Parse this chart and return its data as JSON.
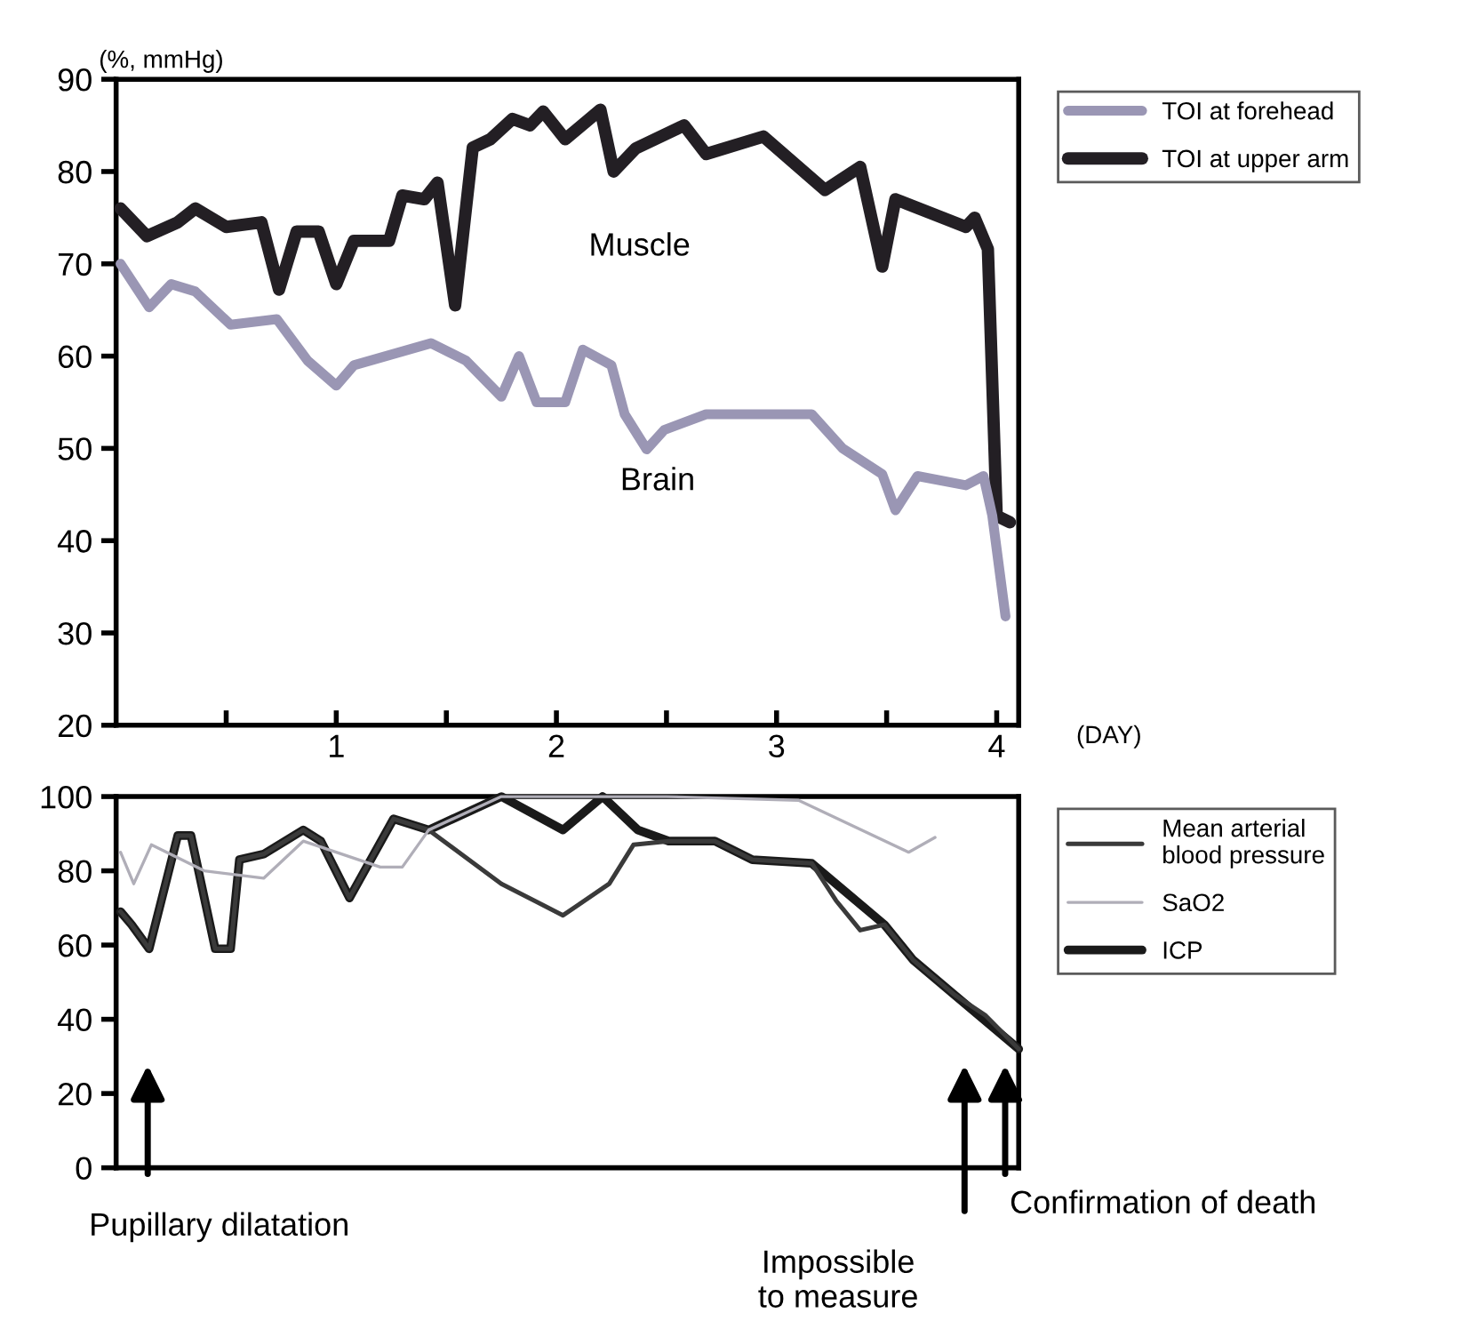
{
  "chart_data": [
    {
      "type": "line",
      "ylabel": "(%, mmHg)",
      "xlabel": "(DAY)",
      "xlim": [
        0,
        4.1
      ],
      "ylim": [
        20,
        90
      ],
      "xticks": [
        {
          "value": 0.5,
          "label": null
        },
        1,
        {
          "value": 1.5,
          "label": null
        },
        2,
        {
          "value": 2.5,
          "label": null
        },
        3,
        {
          "value": 3.5,
          "label": null
        },
        4
      ],
      "yticks": [
        20,
        30,
        40,
        50,
        60,
        70,
        80,
        90
      ],
      "legend": "right",
      "grid": false,
      "annotations": [
        "Muscle",
        "Brain"
      ],
      "series": [
        {
          "name": "TOI at forehead",
          "color": "#9a96b4",
          "x": [
            0.02,
            0.15,
            0.25,
            0.36,
            0.52,
            0.73,
            0.87,
            1.0,
            1.08,
            1.43,
            1.59,
            1.75,
            1.83,
            1.91,
            2.04,
            2.12,
            2.25,
            2.31,
            2.41,
            2.49,
            2.68,
            3.16,
            3.3,
            3.48,
            3.54,
            3.64,
            3.86,
            3.94,
            3.98,
            4.04
          ],
          "values": [
            70,
            65.3,
            67.8,
            67,
            63.4,
            64,
            59.5,
            56.8,
            59,
            61.4,
            59.5,
            55.6,
            60,
            55,
            55,
            60.7,
            59,
            53.7,
            49.9,
            52,
            53.7,
            53.7,
            50,
            47.2,
            43.3,
            47,
            46,
            47,
            42.7,
            31.8
          ]
        },
        {
          "name": "TOI at upper arm",
          "color": "#231f24",
          "x": [
            0.02,
            0.14,
            0.28,
            0.36,
            0.5,
            0.66,
            0.74,
            0.82,
            0.92,
            1.0,
            1.08,
            1.24,
            1.3,
            1.4,
            1.46,
            1.54,
            1.62,
            1.7,
            1.8,
            1.88,
            1.94,
            2.04,
            2.14,
            2.2,
            2.26,
            2.36,
            2.58,
            2.68,
            2.94,
            3.22,
            3.38,
            3.48,
            3.54,
            3.86,
            3.9,
            3.96,
            4.0,
            4.06
          ],
          "values": [
            76,
            73,
            74.5,
            76,
            74,
            74.5,
            67.2,
            73.5,
            73.5,
            67.8,
            72.5,
            72.5,
            77.4,
            77,
            78.8,
            65.5,
            82.6,
            83.5,
            85.7,
            85,
            86.5,
            83.5,
            85.5,
            86.7,
            80,
            82.5,
            85,
            81.9,
            83.8,
            78,
            80.5,
            69.7,
            77,
            74,
            75,
            71.6,
            42.7,
            42
          ]
        }
      ]
    },
    {
      "type": "line",
      "xlim": [
        0,
        4.1
      ],
      "ylim": [
        0,
        100
      ],
      "yticks": [
        0,
        20,
        40,
        60,
        80,
        100
      ],
      "tick_labels": "y",
      "legend": "right",
      "grid": false,
      "annotations": [
        "Pupillary dilatation",
        "Impossible\nto measure",
        "Confirmation of death"
      ],
      "series": [
        {
          "name": "Mean arterial\nblood pressure",
          "color": "#3a3a3a",
          "x": [
            0.02,
            0.07,
            0.15,
            0.28,
            0.34,
            0.45,
            0.52,
            0.56,
            0.67,
            0.85,
            0.93,
            1.06,
            1.26,
            1.42,
            1.75,
            2.03,
            2.24,
            2.35,
            2.51,
            2.62,
            2.72,
            2.89,
            3.16,
            3.27,
            3.38,
            3.49,
            3.62,
            3.81,
            3.95,
            4.1
          ],
          "values": [
            69,
            65.5,
            59,
            89.5,
            89.5,
            59,
            59,
            83,
            84.5,
            91,
            88,
            72.7,
            94,
            91,
            76.5,
            68,
            76.5,
            87,
            88,
            88,
            88,
            83,
            82,
            72,
            64,
            65.5,
            56,
            46.5,
            41,
            32
          ]
        },
        {
          "name": "SaO2",
          "color": "#b0aeb8",
          "x": [
            0.02,
            0.08,
            0.16,
            0.4,
            0.67,
            0.85,
            1.2,
            1.3,
            1.42,
            1.75,
            2.5,
            3.1,
            3.6,
            3.72
          ],
          "values": [
            85,
            76.5,
            87,
            80,
            78,
            88,
            81,
            81,
            91,
            100,
            100,
            99,
            85,
            89
          ]
        },
        {
          "name": "ICP",
          "color": "#1a1a1a",
          "x": [
            0.02,
            0.07,
            0.15,
            0.28,
            0.34,
            0.45,
            0.52,
            0.56,
            0.67,
            0.85,
            0.93,
            1.06,
            1.26,
            1.42,
            1.75,
            2.03,
            2.21,
            2.37,
            2.51,
            2.62,
            2.72,
            2.89,
            3.16,
            3.49,
            3.62,
            3.81,
            4.1
          ],
          "values": [
            69,
            65.5,
            59,
            89.5,
            89.5,
            59,
            59,
            83,
            84.5,
            91,
            88,
            72.7,
            94,
            91,
            100,
            91,
            100,
            91,
            88,
            88,
            88,
            83,
            82,
            65.5,
            56,
            46.5,
            32
          ]
        }
      ]
    }
  ]
}
